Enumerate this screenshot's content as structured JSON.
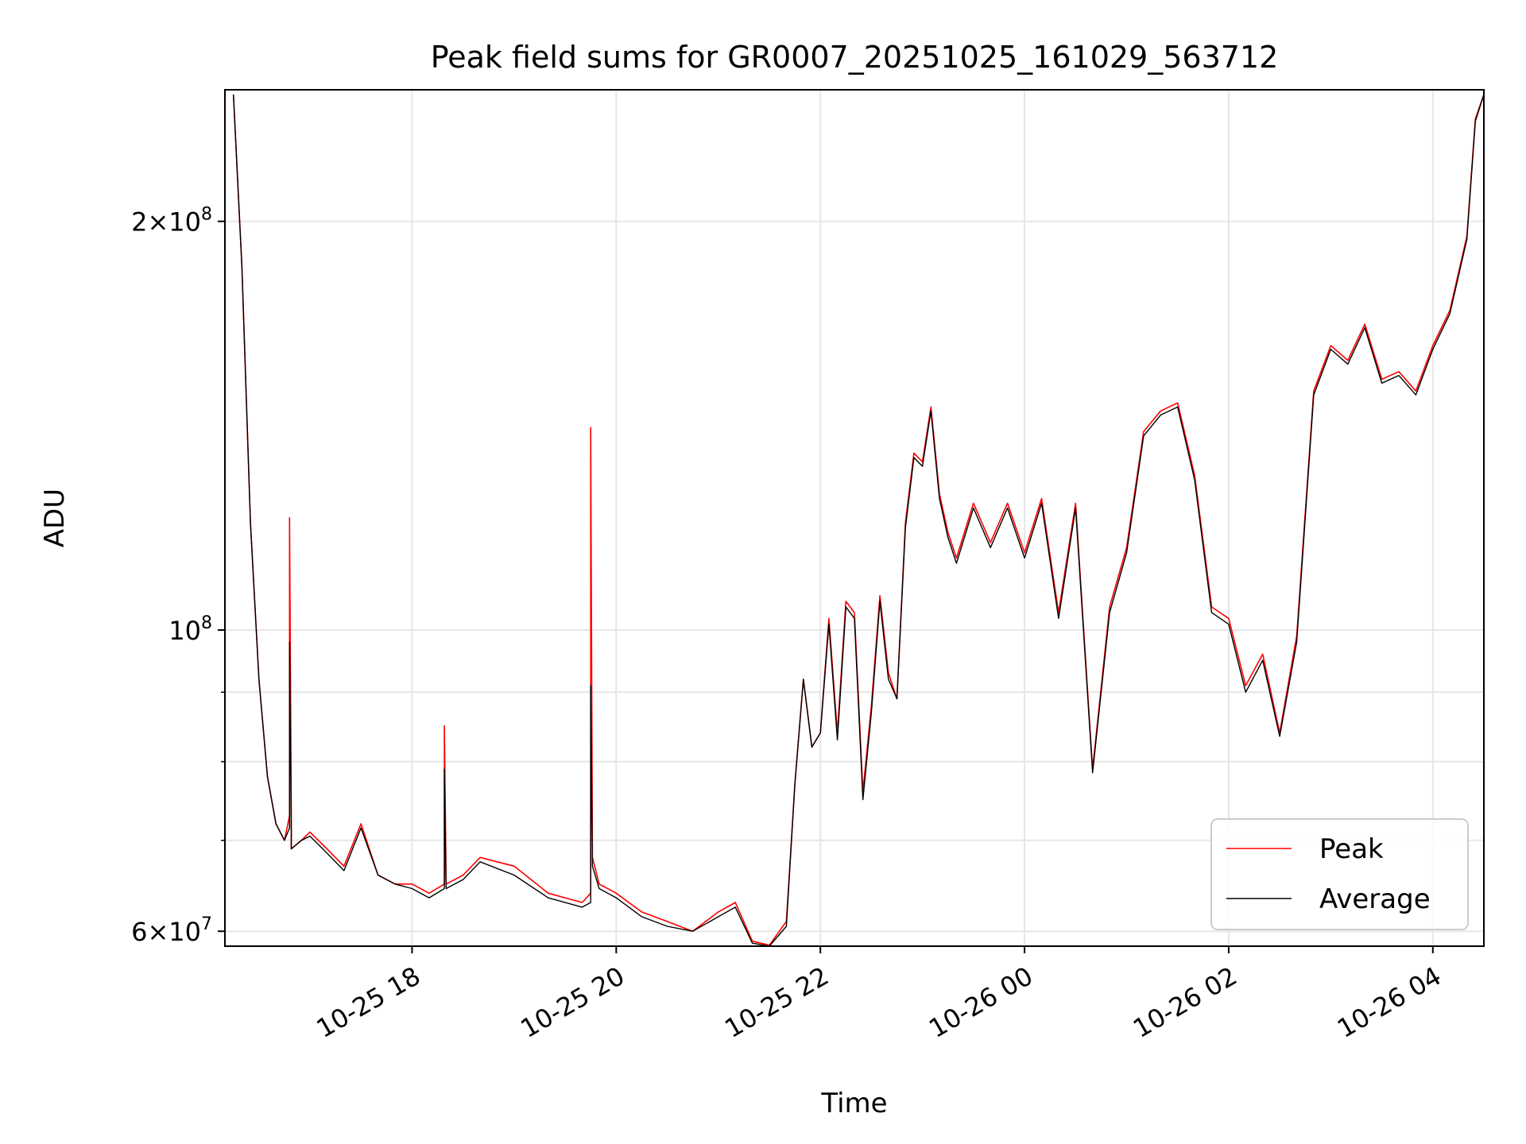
{
  "chart_data": {
    "type": "line",
    "title": "Peak field sums for GR0007_20251025_161029_563712",
    "xlabel": "Time",
    "ylabel": "ADU",
    "yscale": "log",
    "ylim": [
      58500000,
      250000000
    ],
    "xlim": [
      "2025-10-25 16:10",
      "2025-10-26 04:30"
    ],
    "x_ticks": [
      {
        "value": "2025-10-25 18:00",
        "label": "10-25 18"
      },
      {
        "value": "2025-10-25 20:00",
        "label": "10-25 20"
      },
      {
        "value": "2025-10-25 22:00",
        "label": "10-25 22"
      },
      {
        "value": "2025-10-26 00:00",
        "label": "10-26 00"
      },
      {
        "value": "2025-10-26 02:00",
        "label": "10-26 02"
      },
      {
        "value": "2025-10-26 04:00",
        "label": "10-26 04"
      }
    ],
    "y_major_ticks": [
      {
        "value": 60000000,
        "mantissa": "6",
        "exp": "7"
      },
      {
        "value": 100000000,
        "mantissa": "",
        "exp": "8"
      },
      {
        "value": 200000000,
        "mantissa": "2",
        "exp": "8"
      }
    ],
    "y_minor_gridlines": [
      70000000,
      80000000,
      90000000
    ],
    "grid": true,
    "legend": "bottom-right",
    "series": [
      {
        "name": "Peak",
        "color": "#ff0000",
        "x": [
          "2025-10-25 16:15",
          "2025-10-25 16:20",
          "2025-10-25 16:25",
          "2025-10-25 16:30",
          "2025-10-25 16:35",
          "2025-10-25 16:40",
          "2025-10-25 16:45",
          "2025-10-25 16:48",
          "2025-10-25 16:48",
          "2025-10-25 16:49",
          "2025-10-25 16:49",
          "2025-10-25 16:55",
          "2025-10-25 17:00",
          "2025-10-25 17:10",
          "2025-10-25 17:20",
          "2025-10-25 17:30",
          "2025-10-25 17:40",
          "2025-10-25 17:50",
          "2025-10-25 18:00",
          "2025-10-25 18:10",
          "2025-10-25 18:19",
          "2025-10-25 18:19",
          "2025-10-25 18:20",
          "2025-10-25 18:30",
          "2025-10-25 18:40",
          "2025-10-25 19:00",
          "2025-10-25 19:20",
          "2025-10-25 19:40",
          "2025-10-25 19:45",
          "2025-10-25 19:45",
          "2025-10-25 19:46",
          "2025-10-25 19:50",
          "2025-10-25 20:00",
          "2025-10-25 20:15",
          "2025-10-25 20:30",
          "2025-10-25 20:45",
          "2025-10-25 21:00",
          "2025-10-25 21:10",
          "2025-10-25 21:20",
          "2025-10-25 21:30",
          "2025-10-25 21:40",
          "2025-10-25 21:45",
          "2025-10-25 21:50",
          "2025-10-25 21:55",
          "2025-10-25 22:00",
          "2025-10-25 22:05",
          "2025-10-25 22:10",
          "2025-10-25 22:15",
          "2025-10-25 22:20",
          "2025-10-25 22:25",
          "2025-10-25 22:30",
          "2025-10-25 22:35",
          "2025-10-25 22:40",
          "2025-10-25 22:45",
          "2025-10-25 22:50",
          "2025-10-25 22:55",
          "2025-10-25 23:00",
          "2025-10-25 23:05",
          "2025-10-25 23:10",
          "2025-10-25 23:15",
          "2025-10-25 23:20",
          "2025-10-25 23:30",
          "2025-10-25 23:40",
          "2025-10-25 23:50",
          "2025-10-26 00:00",
          "2025-10-26 00:10",
          "2025-10-26 00:20",
          "2025-10-26 00:30",
          "2025-10-26 00:40",
          "2025-10-26 00:50",
          "2025-10-26 01:00",
          "2025-10-26 01:10",
          "2025-10-26 01:20",
          "2025-10-26 01:30",
          "2025-10-26 01:40",
          "2025-10-26 01:50",
          "2025-10-26 02:00",
          "2025-10-26 02:10",
          "2025-10-26 02:20",
          "2025-10-26 02:30",
          "2025-10-26 02:40",
          "2025-10-26 02:50",
          "2025-10-26 03:00",
          "2025-10-26 03:10",
          "2025-10-26 03:20",
          "2025-10-26 03:30",
          "2025-10-26 03:40",
          "2025-10-26 03:50",
          "2025-10-26 04:00",
          "2025-10-26 04:10",
          "2025-10-26 04:20",
          "2025-10-26 04:25",
          "2025-10-26 04:30"
        ],
        "values": [
          248000000,
          185000000,
          120000000,
          92000000,
          78000000,
          72000000,
          70000000,
          73000000,
          121000000,
          73000000,
          69000000,
          70000000,
          71000000,
          69000000,
          67000000,
          72000000,
          66000000,
          65000000,
          65000000,
          64000000,
          65000000,
          85000000,
          65000000,
          66000000,
          68000000,
          67000000,
          64000000,
          63000000,
          64000000,
          141000000,
          68000000,
          65000000,
          64000000,
          62000000,
          61000000,
          60000000,
          62000000,
          63000000,
          59000000,
          58600000,
          61000000,
          77000000,
          92000000,
          82000000,
          84000000,
          102000000,
          84000000,
          105000000,
          103000000,
          76000000,
          88000000,
          106000000,
          93000000,
          89000000,
          120000000,
          135000000,
          133000000,
          146000000,
          126000000,
          118000000,
          113000000,
          124000000,
          116000000,
          124000000,
          114000000,
          125000000,
          103000000,
          124000000,
          79000000,
          104000000,
          115000000,
          140000000,
          145000000,
          147000000,
          130000000,
          104000000,
          102000000,
          91000000,
          96000000,
          84000000,
          99000000,
          150000000,
          162000000,
          158000000,
          168000000,
          153000000,
          155000000,
          150000000,
          162000000,
          172000000,
          195000000,
          238000000,
          248000000
        ]
      },
      {
        "name": "Average",
        "color": "#000000",
        "x": [
          "2025-10-25 16:15",
          "2025-10-25 16:20",
          "2025-10-25 16:25",
          "2025-10-25 16:30",
          "2025-10-25 16:35",
          "2025-10-25 16:40",
          "2025-10-25 16:45",
          "2025-10-25 16:48",
          "2025-10-25 16:48",
          "2025-10-25 16:49",
          "2025-10-25 16:49",
          "2025-10-25 16:55",
          "2025-10-25 17:00",
          "2025-10-25 17:10",
          "2025-10-25 17:20",
          "2025-10-25 17:30",
          "2025-10-25 17:40",
          "2025-10-25 17:50",
          "2025-10-25 18:00",
          "2025-10-25 18:10",
          "2025-10-25 18:19",
          "2025-10-25 18:19",
          "2025-10-25 18:20",
          "2025-10-25 18:30",
          "2025-10-25 18:40",
          "2025-10-25 19:00",
          "2025-10-25 19:20",
          "2025-10-25 19:40",
          "2025-10-25 19:45",
          "2025-10-25 19:45",
          "2025-10-25 19:46",
          "2025-10-25 19:50",
          "2025-10-25 20:00",
          "2025-10-25 20:15",
          "2025-10-25 20:30",
          "2025-10-25 20:45",
          "2025-10-25 21:00",
          "2025-10-25 21:10",
          "2025-10-25 21:20",
          "2025-10-25 21:30",
          "2025-10-25 21:40",
          "2025-10-25 21:45",
          "2025-10-25 21:50",
          "2025-10-25 21:55",
          "2025-10-25 22:00",
          "2025-10-25 22:05",
          "2025-10-25 22:10",
          "2025-10-25 22:15",
          "2025-10-25 22:20",
          "2025-10-25 22:25",
          "2025-10-25 22:30",
          "2025-10-25 22:35",
          "2025-10-25 22:40",
          "2025-10-25 22:45",
          "2025-10-25 22:50",
          "2025-10-25 22:55",
          "2025-10-25 23:00",
          "2025-10-25 23:05",
          "2025-10-25 23:10",
          "2025-10-25 23:15",
          "2025-10-25 23:20",
          "2025-10-25 23:30",
          "2025-10-25 23:40",
          "2025-10-25 23:50",
          "2025-10-26 00:00",
          "2025-10-26 00:10",
          "2025-10-26 00:20",
          "2025-10-26 00:30",
          "2025-10-26 00:40",
          "2025-10-26 00:50",
          "2025-10-26 01:00",
          "2025-10-26 01:10",
          "2025-10-26 01:20",
          "2025-10-26 01:30",
          "2025-10-26 01:40",
          "2025-10-26 01:50",
          "2025-10-26 02:00",
          "2025-10-26 02:10",
          "2025-10-26 02:20",
          "2025-10-26 02:30",
          "2025-10-26 02:40",
          "2025-10-26 02:50",
          "2025-10-26 03:00",
          "2025-10-26 03:10",
          "2025-10-26 03:20",
          "2025-10-26 03:30",
          "2025-10-26 03:40",
          "2025-10-26 03:50",
          "2025-10-26 04:00",
          "2025-10-26 04:10",
          "2025-10-26 04:20",
          "2025-10-26 04:25",
          "2025-10-26 04:30"
        ],
        "values": [
          248000000,
          185000000,
          120000000,
          92000000,
          78000000,
          72000000,
          70000000,
          71500000,
          98000000,
          71000000,
          69000000,
          70000000,
          70500000,
          68500000,
          66500000,
          71500000,
          66000000,
          65000000,
          64500000,
          63500000,
          64500000,
          79000000,
          64500000,
          65500000,
          67500000,
          66000000,
          63500000,
          62500000,
          63000000,
          91000000,
          67000000,
          64500000,
          63500000,
          61500000,
          60500000,
          60000000,
          61500000,
          62500000,
          58800000,
          58500000,
          60500000,
          77000000,
          92000000,
          82000000,
          84000000,
          101000000,
          83000000,
          104000000,
          102000000,
          75000000,
          87000000,
          105000000,
          92000000,
          89000000,
          119000000,
          134000000,
          132000000,
          145000000,
          125000000,
          117000000,
          112000000,
          123000000,
          115000000,
          123000000,
          113000000,
          124000000,
          102000000,
          123000000,
          78500000,
          103000000,
          114000000,
          139000000,
          144000000,
          146000000,
          129000000,
          103000000,
          101000000,
          90000000,
          95000000,
          83500000,
          98000000,
          149000000,
          161000000,
          157000000,
          167000000,
          152000000,
          154000000,
          149000000,
          161000000,
          171000000,
          194000000,
          237000000,
          248000000
        ]
      }
    ]
  }
}
